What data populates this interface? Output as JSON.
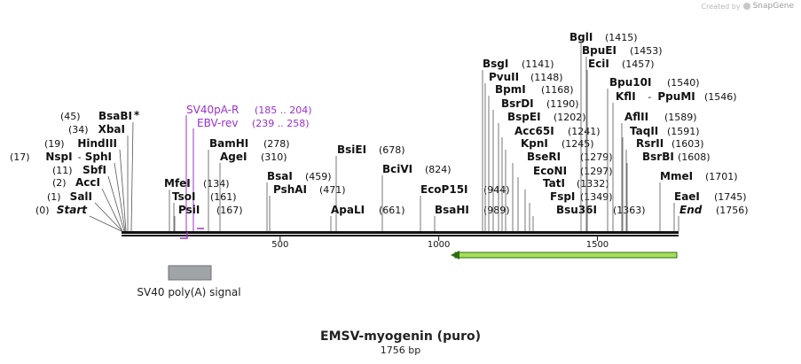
{
  "credit": {
    "prefix": "Created by",
    "brand": "SnapGene"
  },
  "title": "EMSV-myogenin (puro)",
  "subtitle": "1756 bp",
  "axis_ticks": [
    "500",
    "1000",
    "1500"
  ],
  "colors": {
    "primer": "#9b30d0",
    "feature_gray": "#a0a4a8",
    "arrow_green": "#a6e05a",
    "arrow_dark": "#2f6e10",
    "text": "#111111"
  },
  "feature": {
    "label": "SV40 poly(A) signal"
  },
  "primers": [
    {
      "name": "SV40pA-R",
      "range": "(185 .. 204)"
    },
    {
      "name": "EBV-rev",
      "range": "(239 .. 258)"
    }
  ],
  "sites": [
    {
      "name": "Start",
      "pos": "(0)"
    },
    {
      "name": "SalI",
      "pos": "(1)"
    },
    {
      "name": "AccI",
      "pos": "(2)"
    },
    {
      "name": "SbfI",
      "pos": "(11)"
    },
    {
      "name": "NspI",
      "pos": "(17)",
      "name2": "SphI"
    },
    {
      "name": "HindIII",
      "pos": "(19)"
    },
    {
      "name": "XbaI",
      "pos": "(34)"
    },
    {
      "name": "BsaBI",
      "pos": "(45)",
      "mark": "*"
    },
    {
      "name": "MfeI",
      "pos": "(134)"
    },
    {
      "name": "TsoI",
      "pos": "(161)"
    },
    {
      "name": "PsiI",
      "pos": "(167)"
    },
    {
      "name": "BamHI",
      "pos": "(278)"
    },
    {
      "name": "AgeI",
      "pos": "(310)"
    },
    {
      "name": "BsaI",
      "pos": "(459)"
    },
    {
      "name": "PshAI",
      "pos": "(471)"
    },
    {
      "name": "BsiEI",
      "pos": "(678)"
    },
    {
      "name": "ApaLI",
      "pos": "(661)"
    },
    {
      "name": "BciVI",
      "pos": "(824)"
    },
    {
      "name": "EcoP15I",
      "pos": "(944)"
    },
    {
      "name": "BsaHI",
      "pos": "(989)"
    },
    {
      "name": "BsgI",
      "pos": "(1141)"
    },
    {
      "name": "PvuII",
      "pos": "(1148)"
    },
    {
      "name": "BpmI",
      "pos": "(1168)"
    },
    {
      "name": "BsrDI",
      "pos": "(1190)"
    },
    {
      "name": "BspEI",
      "pos": "(1202)"
    },
    {
      "name": "Acc65I",
      "pos": "(1241)"
    },
    {
      "name": "KpnI",
      "pos": "(1245)"
    },
    {
      "name": "BseRI",
      "pos": "(1279)"
    },
    {
      "name": "EcoNI",
      "pos": "(1297)"
    },
    {
      "name": "TatI",
      "pos": "(1332)"
    },
    {
      "name": "FspI",
      "pos": "(1349)"
    },
    {
      "name": "Bsu36I",
      "pos": "(1363)"
    },
    {
      "name": "BglI",
      "pos": "(1415)"
    },
    {
      "name": "BpuEI",
      "pos": "(1453)"
    },
    {
      "name": "EciI",
      "pos": "(1457)"
    },
    {
      "name": "Bpu10I",
      "pos": "(1540)"
    },
    {
      "name": "KflI",
      "pos": "(1546)",
      "name2": "PpuMI"
    },
    {
      "name": "AflII",
      "pos": "(1589)"
    },
    {
      "name": "TaqII",
      "pos": "(1591)"
    },
    {
      "name": "RsrII",
      "pos": "(1603)"
    },
    {
      "name": "BsrBI",
      "pos": "(1608)"
    },
    {
      "name": "MmeI",
      "pos": "(1701)"
    },
    {
      "name": "EaeI",
      "pos": "(1745)"
    },
    {
      "name": "End",
      "pos": "(1756)"
    }
  ]
}
